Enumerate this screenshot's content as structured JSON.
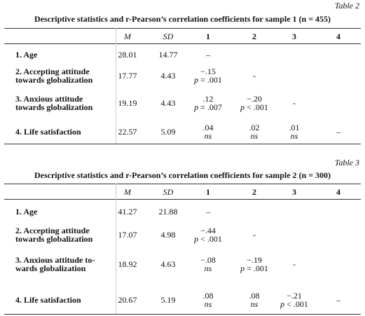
{
  "tables": [
    {
      "label": "Table 2",
      "title": "Descriptive statistics and r-Pearson’s correlation coefficients for sample 1 (n = 455)",
      "headers": [
        "M",
        "SD",
        "1",
        "2",
        "3",
        "4"
      ],
      "rows": [
        {
          "label": [
            "1. Age"
          ],
          "M": "28.01",
          "SD": "14.77",
          "cells": [
            [
              "–"
            ]
          ]
        },
        {
          "label": [
            "2. Accepting attitude",
            "towards globalization"
          ],
          "M": "17.77",
          "SD": "4.43",
          "cells": [
            [
              "−.15",
              "p = .001"
            ],
            [
              "-"
            ]
          ]
        },
        {
          "label": [
            "3. Anxious attitude",
            "towards globalization"
          ],
          "M": "19.19",
          "SD": "4.43",
          "cells": [
            [
              ".12",
              "p = .007"
            ],
            [
              "−.20",
              "p < .001"
            ],
            [
              "-"
            ]
          ]
        },
        {
          "label": [
            "4. Life satisfaction"
          ],
          "M": "22.57",
          "SD": "5.09",
          "cells": [
            [
              ".04",
              "ns"
            ],
            [
              ".02",
              "ns"
            ],
            [
              ".01",
              "ns"
            ],
            [
              "–"
            ]
          ]
        }
      ]
    },
    {
      "label": "Table 3",
      "title": "Descriptive statistics and r-Pearson’s correlation coefficients for sample 2 (n = 300)",
      "headers": [
        "M",
        "SD",
        "1",
        "2",
        "3",
        "4"
      ],
      "rows": [
        {
          "label": [
            "1. Age"
          ],
          "M": "41.27",
          "SD": "21.88",
          "cells": [
            [
              "–"
            ]
          ]
        },
        {
          "label": [
            "2. Accepting attitude",
            "towards globalization"
          ],
          "M": "17.07",
          "SD": "4.98",
          "cells": [
            [
              "−.44",
              "p < .001"
            ],
            [
              "-"
            ]
          ]
        },
        {
          "label": [
            "3. Anxious attitude to-",
            "wards globalization"
          ],
          "M": "18.92",
          "SD": "4.63",
          "cells": [
            [
              "−.08",
              "ns"
            ],
            [
              "−.19",
              "p = .001"
            ],
            [
              "-"
            ]
          ]
        },
        {
          "label": [
            "4. Life satisfaction"
          ],
          "M": "20.67",
          "SD": "5.19",
          "cells": [
            [
              ".08",
              "ns"
            ],
            [
              ".08",
              "ns"
            ],
            [
              "−.21",
              "p < .001"
            ],
            [
              "–"
            ]
          ]
        }
      ]
    }
  ]
}
